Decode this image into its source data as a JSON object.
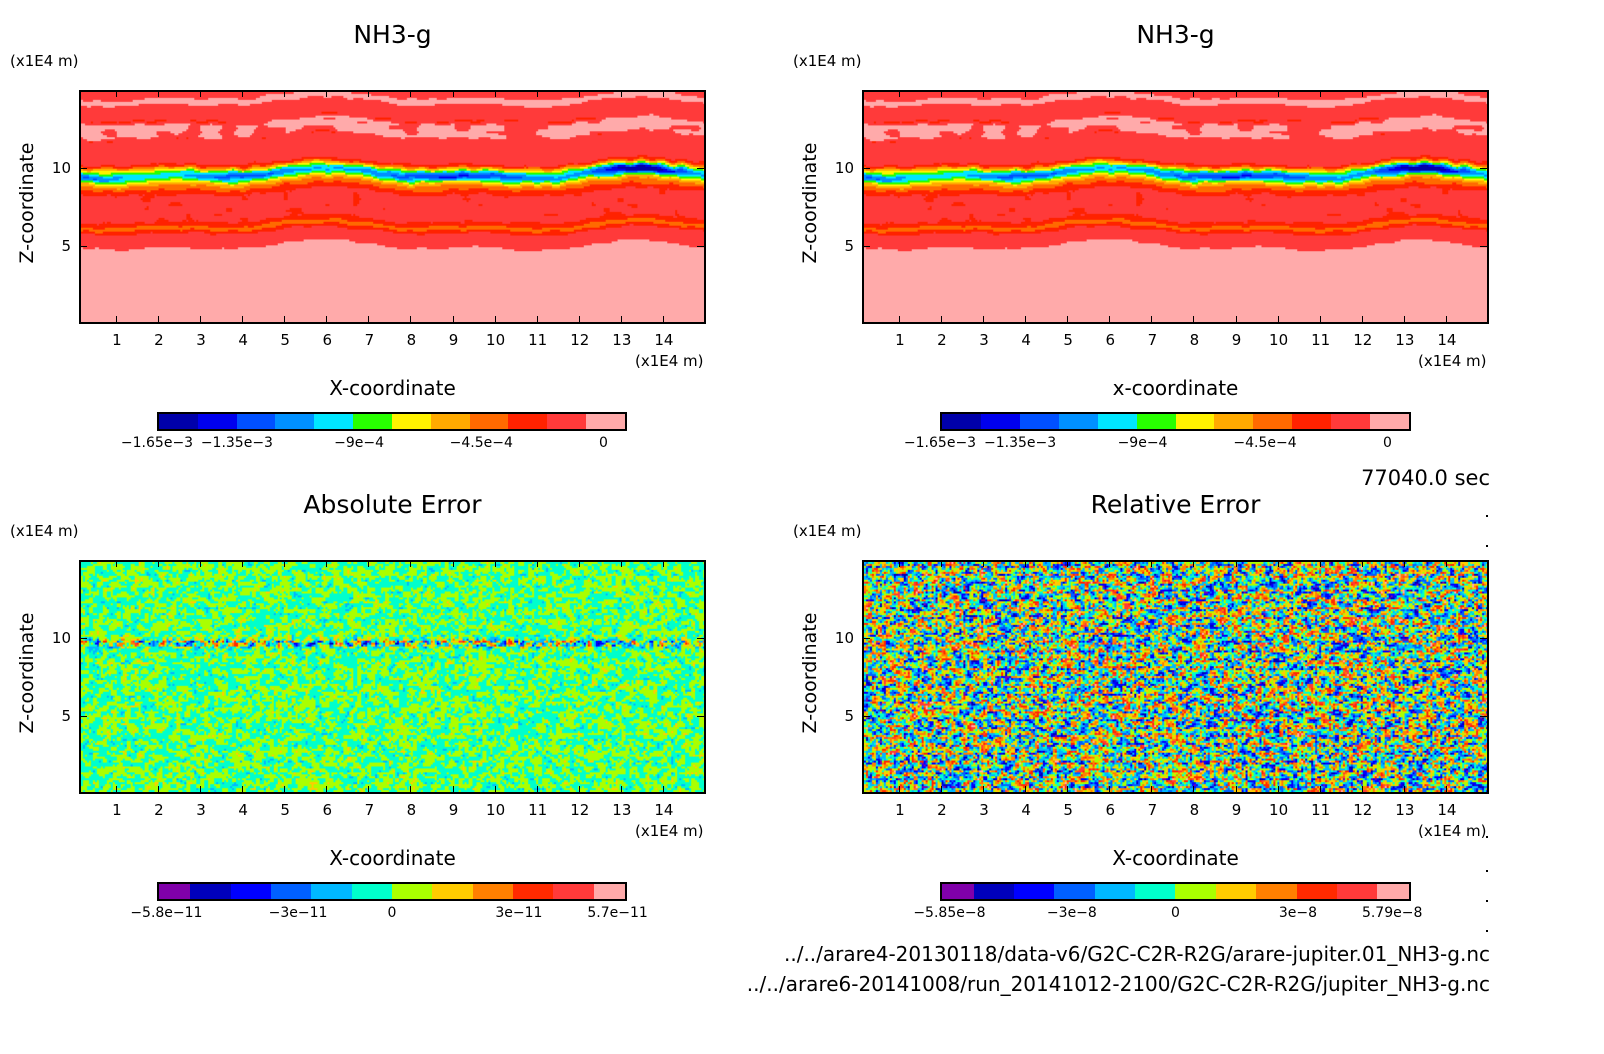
{
  "time_label": "77040.0 sec",
  "files": [
    "../../arare4-20130118/data-v6/G2C-C2R-R2G/arare-jupiter.01_NH3-g.nc",
    "../../arare6-20141008/run_20141012-2100/G2C-C2R-R2G/jupiter_NH3-g.nc"
  ],
  "chart_data": [
    {
      "type": "heatmap",
      "subtype": "filled-contour",
      "title": "NH3-g",
      "xlabel": "X-coordinate",
      "ylabel": "Z-coordinate",
      "x_unit": "(x1E4 m)",
      "y_unit": "(x1E4 m)",
      "xlim": [
        0.1,
        15
      ],
      "ylim": [
        0,
        15
      ],
      "x_ticks": [
        "1",
        "2",
        "3",
        "4",
        "5",
        "6",
        "7",
        "8",
        "9",
        "10",
        "11",
        "12",
        "13",
        "14"
      ],
      "y_ticks": [
        "5",
        "10"
      ],
      "colorbar": {
        "ticks": [
          "−1.65e−3",
          "−1.35e−3",
          "−9e−4",
          "−4.5e−4",
          "0"
        ],
        "colors": [
          "#0000aa",
          "#0000ee",
          "#0050ff",
          "#0090ff",
          "#00e6ff",
          "#28ff00",
          "#fff200",
          "#ffaa00",
          "#ff6a00",
          "#ff2200",
          "#ff3a3a",
          "#ffaaaa"
        ]
      }
    },
    {
      "type": "heatmap",
      "subtype": "filled-contour",
      "title": "NH3-g",
      "xlabel": "x-coordinate",
      "ylabel": "Z-coordinate",
      "x_unit": "(x1E4 m)",
      "y_unit": "(x1E4 m)",
      "xlim": [
        0.1,
        15
      ],
      "ylim": [
        0,
        15
      ],
      "x_ticks": [
        "1",
        "2",
        "3",
        "4",
        "5",
        "6",
        "7",
        "8",
        "9",
        "10",
        "11",
        "12",
        "13",
        "14"
      ],
      "y_ticks": [
        "5",
        "10"
      ],
      "colorbar": {
        "ticks": [
          "−1.65e−3",
          "−1.35e−3",
          "−9e−4",
          "−4.5e−4",
          "0"
        ],
        "colors": [
          "#0000aa",
          "#0000ee",
          "#0050ff",
          "#0090ff",
          "#00e6ff",
          "#28ff00",
          "#fff200",
          "#ffaa00",
          "#ff6a00",
          "#ff2200",
          "#ff3a3a",
          "#ffaaaa"
        ]
      }
    },
    {
      "type": "heatmap",
      "subtype": "filled-contour",
      "title": "Absolute Error",
      "xlabel": "X-coordinate",
      "ylabel": "Z-coordinate",
      "x_unit": "(x1E4 m)",
      "y_unit": "(x1E4 m)",
      "xlim": [
        0.1,
        15
      ],
      "ylim": [
        0,
        15
      ],
      "x_ticks": [
        "1",
        "2",
        "3",
        "4",
        "5",
        "6",
        "7",
        "8",
        "9",
        "10",
        "11",
        "12",
        "13",
        "14"
      ],
      "y_ticks": [
        "5",
        "10"
      ],
      "colorbar": {
        "ticks": [
          "−5.8e−11",
          "−3e−11",
          "0",
          "3e−11",
          "5.7e−11"
        ],
        "colors": [
          "#8000aa",
          "#0000bb",
          "#0000ff",
          "#0060ff",
          "#00b8ff",
          "#00ffcc",
          "#aaff00",
          "#ffcc00",
          "#ff8000",
          "#ff2a00",
          "#ff3a3a",
          "#ffaaaa"
        ]
      }
    },
    {
      "type": "heatmap",
      "subtype": "filled-contour",
      "title": "Relative Error",
      "xlabel": "X-coordinate",
      "ylabel": "Z-coordinate",
      "x_unit": "(x1E4 m)",
      "y_unit": "(x1E4 m)",
      "xlim": [
        0.1,
        15
      ],
      "ylim": [
        0,
        15
      ],
      "x_ticks": [
        "1",
        "2",
        "3",
        "4",
        "5",
        "6",
        "7",
        "8",
        "9",
        "10",
        "11",
        "12",
        "13",
        "14"
      ],
      "y_ticks": [
        "5",
        "10"
      ],
      "colorbar": {
        "ticks": [
          "−5.85e−8",
          "−3e−8",
          "0",
          "3e−8",
          "5.79e−8"
        ],
        "colors": [
          "#8000aa",
          "#0000bb",
          "#0000ff",
          "#0060ff",
          "#00b8ff",
          "#00ffcc",
          "#aaff00",
          "#ffcc00",
          "#ff8000",
          "#ff2a00",
          "#ff3a3a",
          "#ffaaaa"
        ]
      }
    }
  ]
}
